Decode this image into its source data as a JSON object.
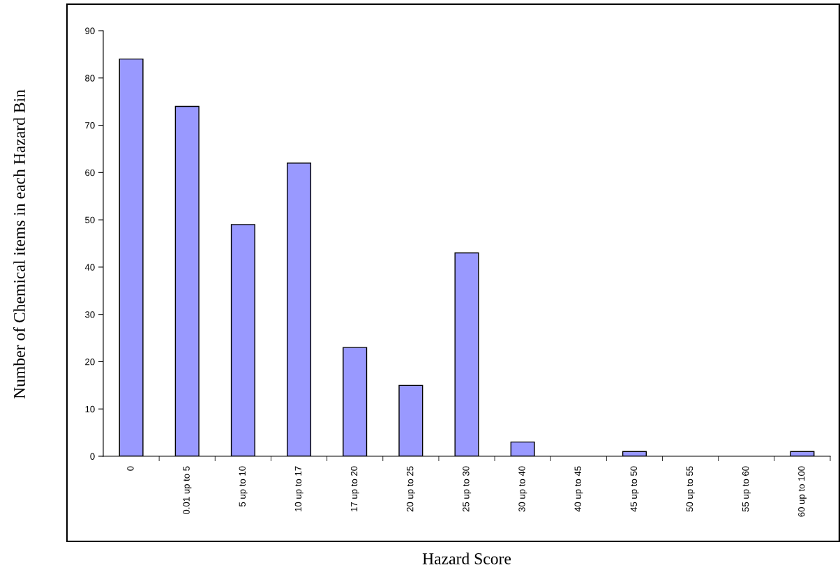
{
  "chart_data": {
    "type": "bar",
    "xlabel": "Hazard Score",
    "ylabel": "Number of Chemical items in each Hazard Bin",
    "categories": [
      "0",
      "0.01 up to 5",
      "5 up to 10",
      "10 up to 17",
      "17 up to 20",
      "20 up to 25",
      "25 up to 30",
      "30 up to 40",
      "40 up to 45",
      "45 up to 50",
      "50 up to 55",
      "55 up to 60",
      "60 up to 100"
    ],
    "values": [
      84,
      74,
      49,
      62,
      23,
      15,
      43,
      3,
      0,
      1,
      0,
      0,
      1
    ],
    "color": "#9999ff",
    "ylim": [
      0,
      90
    ],
    "yticks": [
      0,
      10,
      20,
      30,
      40,
      50,
      60,
      70,
      80,
      90
    ],
    "grid": false,
    "legend": false
  }
}
